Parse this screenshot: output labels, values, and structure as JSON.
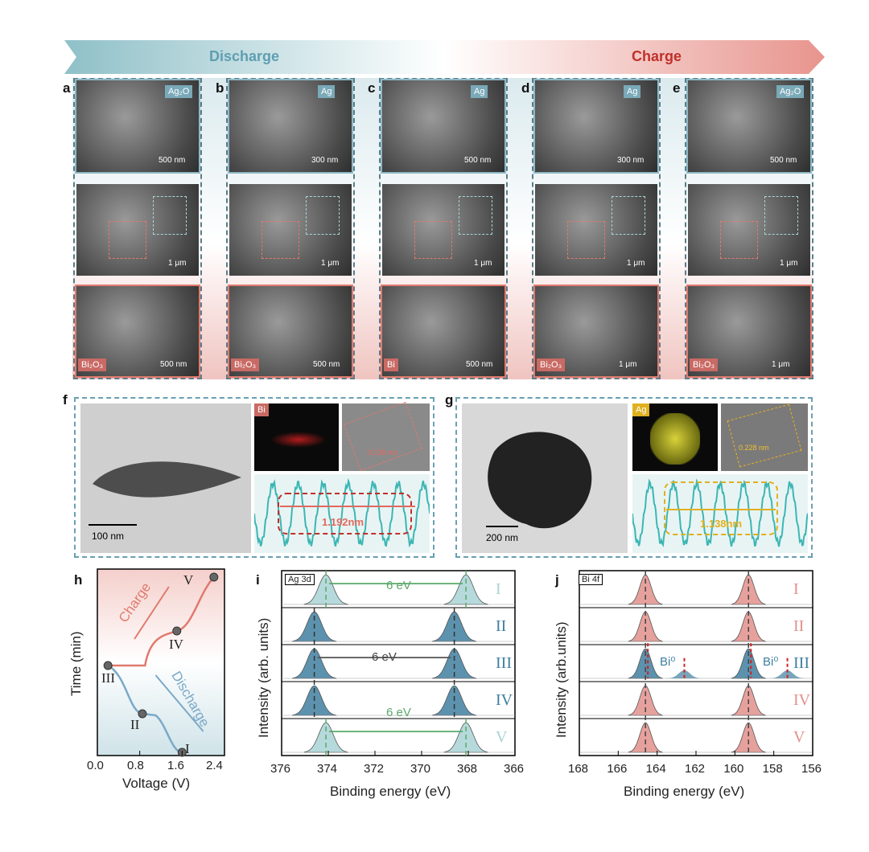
{
  "banner": {
    "discharge": "Discharge",
    "charge": "Charge"
  },
  "panel_labels": {
    "a": "a",
    "b": "b",
    "c": "c",
    "d": "d",
    "e": "e",
    "f": "f",
    "g": "g",
    "h": "h",
    "i": "i",
    "j": "j"
  },
  "sem": {
    "columns": [
      {
        "top_tag": "Ag₂O",
        "top_scale": "500 nm",
        "mid_scale": "1 μm",
        "bot_tag": "Bi₂O₃",
        "bot_scale": "500 nm"
      },
      {
        "top_tag": "Ag",
        "top_scale": "300 nm",
        "mid_scale": "1 μm",
        "bot_tag": "Bi₂O₃",
        "bot_scale": "500 nm"
      },
      {
        "top_tag": "Ag",
        "top_scale": "500 nm",
        "mid_scale": "1 μm",
        "bot_tag": "Bi",
        "bot_scale": "500 nm"
      },
      {
        "top_tag": "Ag",
        "top_scale": "300 nm",
        "mid_scale": "1 μm",
        "bot_tag": "Bi₂O₃",
        "bot_scale": "1 μm"
      },
      {
        "top_tag": "Ag₂O",
        "top_scale": "500 nm",
        "mid_scale": "1 μm",
        "bot_tag": "Bi₂O₃",
        "bot_scale": "1 μm"
      }
    ]
  },
  "tem_f": {
    "scale": "100 nm",
    "map_tag": "Bi",
    "lattice": "0.238 nm",
    "profile": "1.192nm"
  },
  "tem_g": {
    "scale": "200 nm",
    "map_tag": "Ag",
    "lattice": "0.228 nm",
    "profile": "1.138nm"
  },
  "chart_h": {
    "type": "line",
    "xlabel": "Voltage (V)",
    "ylabel": "Time (min)",
    "xticks": [
      "0.0",
      "0.8",
      "1.6",
      "2.4"
    ],
    "xlim": [
      0,
      2.4
    ],
    "points": [
      "I",
      "II",
      "III",
      "IV",
      "V"
    ],
    "charge_label": "Charge",
    "discharge_label": "Discharge"
  },
  "chart_data": [
    {
      "type": "line",
      "panel": "i",
      "title": "Ag 3d",
      "xlabel": "Binding energy (eV)",
      "ylabel": "Intensity (arb. units)",
      "xlim": [
        376,
        366
      ],
      "xticks": [
        "376",
        "374",
        "372",
        "370",
        "368",
        "366"
      ],
      "rows": [
        "I",
        "II",
        "III",
        "IV",
        "V"
      ],
      "peaks_ev": [
        [
          374.1,
          368.1
        ],
        [
          374.6,
          368.6
        ],
        [
          374.6,
          368.6
        ],
        [
          374.6,
          368.6
        ],
        [
          374.1,
          368.1
        ]
      ],
      "annotations": [
        "6 eV",
        "6 eV",
        "6 eV"
      ],
      "colors": {
        "light": "#a9d3d5",
        "dark": "#3f7fa0"
      }
    },
    {
      "type": "line",
      "panel": "j",
      "title": "Bi 4f",
      "xlabel": "Binding energy (eV)",
      "ylabel": "Intensity (arb.units)",
      "xlim": [
        168,
        156
      ],
      "xticks": [
        "168",
        "166",
        "164",
        "162",
        "160",
        "158",
        "156"
      ],
      "rows": [
        "I",
        "II",
        "III",
        "IV",
        "V"
      ],
      "peaks_ev": [
        164.6,
        159.3
      ],
      "bi0_peaks_ev": [
        162.6,
        157.3
      ],
      "bi0_label": "Bi⁰",
      "colors": {
        "red": "#e2908c",
        "blue": "#3f7fa0"
      }
    }
  ]
}
